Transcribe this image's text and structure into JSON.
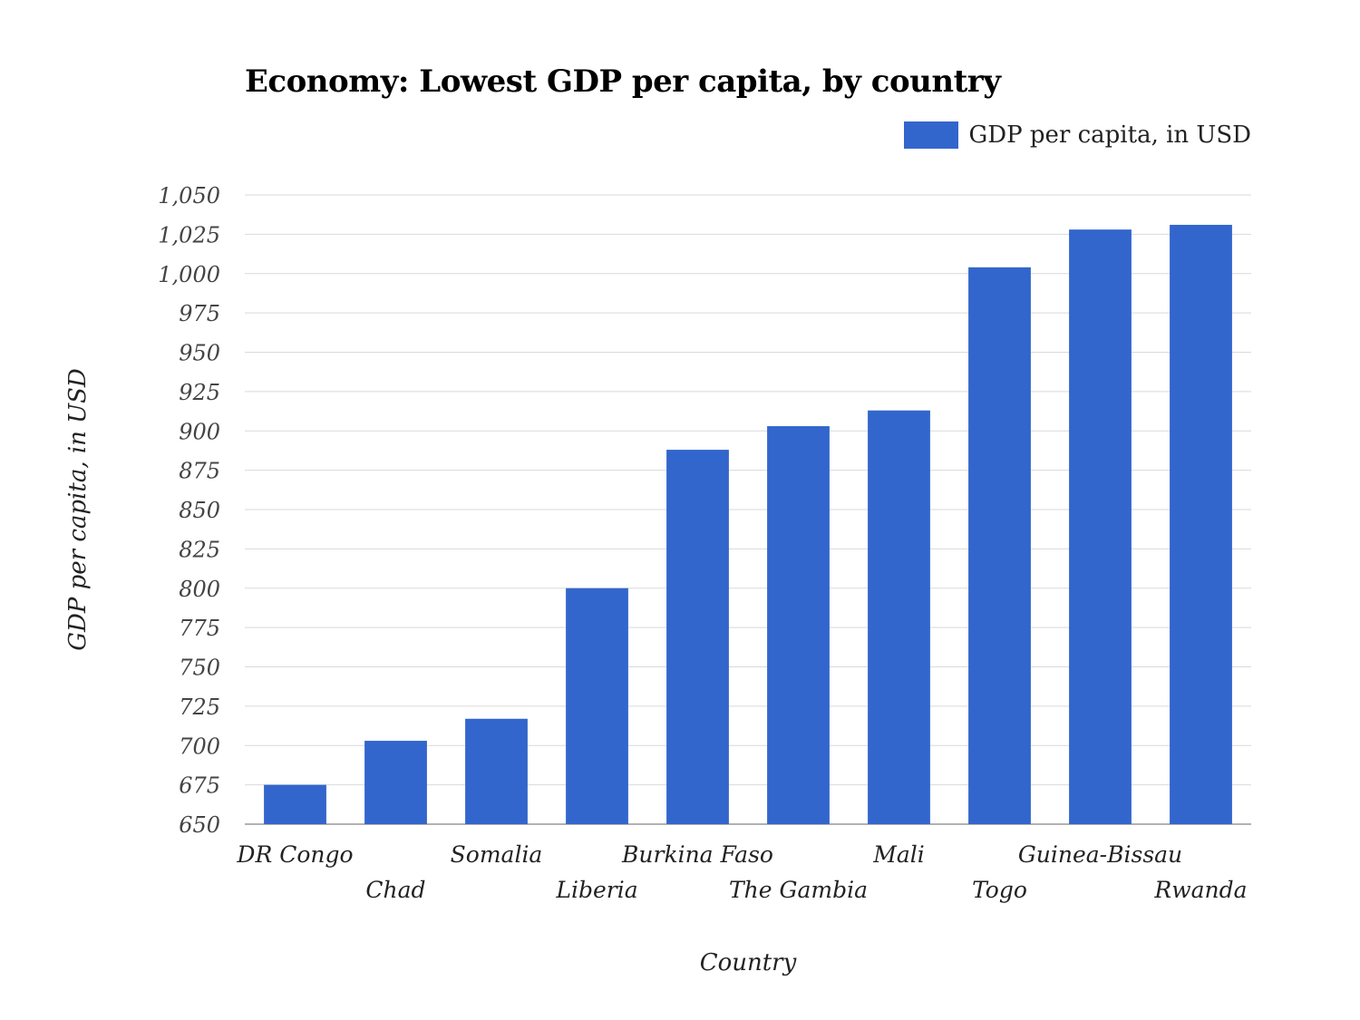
{
  "chart_data": {
    "type": "bar",
    "title": "Economy: Lowest GDP per capita, by country",
    "xlabel": "Country",
    "ylabel": "GDP per capita, in USD",
    "categories": [
      "DR Congo",
      "Chad",
      "Somalia",
      "Liberia",
      "Burkina Faso",
      "The Gambia",
      "Mali",
      "Togo",
      "Guinea-Bissau",
      "Rwanda"
    ],
    "series": [
      {
        "name": "GDP per capita, in USD",
        "values": [
          675,
          703,
          717,
          800,
          888,
          903,
          913,
          1004,
          1028,
          1031
        ],
        "color": "#3366cc"
      }
    ],
    "ylim": [
      650,
      1050
    ],
    "yticks": [
      650,
      675,
      700,
      725,
      750,
      775,
      800,
      825,
      850,
      875,
      900,
      925,
      950,
      975,
      1000,
      1025,
      1050
    ],
    "ytick_labels": [
      "650",
      "675",
      "700",
      "725",
      "750",
      "775",
      "800",
      "825",
      "850",
      "875",
      "900",
      "925",
      "950",
      "975",
      "1,000",
      "1,025",
      "1,050"
    ],
    "grid": true,
    "legend_position": "top-right"
  }
}
